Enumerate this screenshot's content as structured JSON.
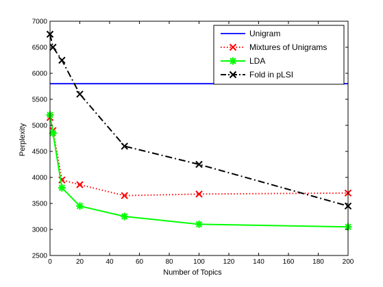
{
  "chart_data": {
    "type": "line",
    "title": "",
    "xlabel": "Number of Topics",
    "ylabel": "Perplexity",
    "xlim": [
      0,
      200
    ],
    "ylim": [
      2500,
      7000
    ],
    "x_ticks": [
      0,
      20,
      40,
      60,
      80,
      100,
      120,
      140,
      160,
      180,
      200
    ],
    "y_ticks": [
      2500,
      3000,
      3500,
      4000,
      4500,
      5000,
      5500,
      6000,
      6500,
      7000
    ],
    "x_tick_labels": [
      "0",
      "20",
      "40",
      "60",
      "80",
      "100",
      "120",
      "140",
      "160",
      "180",
      "200"
    ],
    "y_tick_labels": [
      "2500",
      "3000",
      "3500",
      "4000",
      "4500",
      "5000",
      "5500",
      "6000",
      "6500",
      "7000"
    ],
    "grid": false,
    "legend_position": "top-right",
    "series": [
      {
        "name": "Unigram",
        "color": "#0000ff",
        "line_style": "solid",
        "marker": "none",
        "x": [
          0,
          200
        ],
        "y": [
          5800,
          5800
        ]
      },
      {
        "name": "Mixtures of Unigrams",
        "color": "#ff0000",
        "line_style": "dotted",
        "marker": "x",
        "x": [
          0,
          2,
          8,
          20,
          50,
          100,
          200
        ],
        "y": [
          5150,
          4900,
          3950,
          3860,
          3650,
          3680,
          3700
        ]
      },
      {
        "name": "LDA",
        "color": "#00ff00",
        "line_style": "solid",
        "marker": "star",
        "x": [
          0,
          2,
          8,
          20,
          50,
          100,
          200
        ],
        "y": [
          5200,
          4850,
          3800,
          3450,
          3250,
          3100,
          3050
        ]
      },
      {
        "name": "Fold in pLSI",
        "color": "#000000",
        "line_style": "dashdot",
        "marker": "x",
        "x": [
          0,
          2,
          8,
          20,
          50,
          100,
          200
        ],
        "y": [
          6750,
          6500,
          6250,
          5600,
          4600,
          4250,
          3450
        ]
      }
    ]
  }
}
